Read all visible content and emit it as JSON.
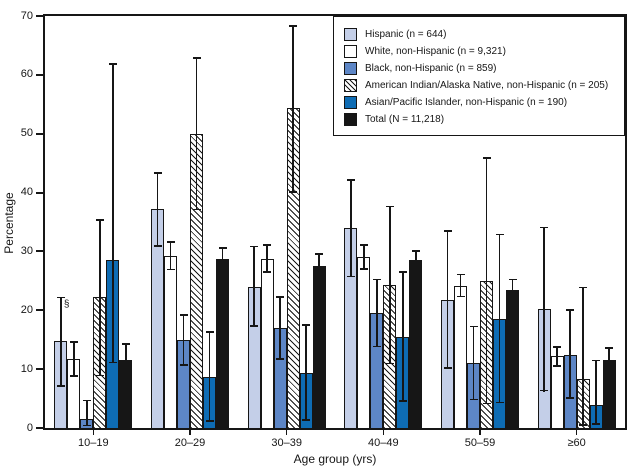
{
  "figure": {
    "background": "#ffffff",
    "axis_color": "#161616"
  },
  "chart_data": {
    "type": "bar",
    "title": "",
    "xlabel": "Age group (yrs)",
    "ylabel": "Percentage",
    "ylim": [
      0,
      70
    ],
    "yticks": [
      0,
      10,
      20,
      30,
      40,
      50,
      60,
      70
    ],
    "grid": false,
    "error_bars": true,
    "legend_position": "top-right-inside",
    "categories": [
      "10–19",
      "20–29",
      "30–39",
      "40–49",
      "50–59",
      "≥60"
    ],
    "series": [
      {
        "name": "Hispanic (n = 644)",
        "color": "#c4cfe8",
        "values": [
          14.7,
          37.2,
          24.0,
          34.0,
          21.8,
          20.2
        ],
        "err_low": [
          7.0,
          30.8,
          17.2,
          25.6,
          10.0,
          6.2
        ],
        "err_high": [
          22.3,
          43.5,
          31.0,
          42.3,
          33.6,
          34.2
        ]
      },
      {
        "name": "White, non-Hispanic (n = 9,321)",
        "color": "#ffffff",
        "values": [
          11.7,
          29.2,
          28.8,
          29.0,
          24.2,
          12.2
        ],
        "err_low": [
          8.7,
          26.8,
          26.4,
          26.9,
          22.2,
          10.4
        ],
        "err_high": [
          14.8,
          31.7,
          31.2,
          31.2,
          26.2,
          13.9
        ]
      },
      {
        "name": "Black, non-Hispanic (n = 859)",
        "color": "#5d86c6",
        "values": [
          1.5,
          15.0,
          17.0,
          19.5,
          11.0,
          12.4
        ],
        "err_low": [
          0.3,
          10.6,
          11.6,
          13.7,
          4.7,
          5.0
        ],
        "err_high": [
          4.8,
          19.3,
          22.4,
          25.4,
          17.4,
          20.2
        ]
      },
      {
        "name": "American Indian/Alaska Native, non-Hispanic (n = 205)",
        "color": "#ffffff",
        "pattern": "diagonal-hatch",
        "values": [
          22.2,
          50.0,
          54.3,
          24.3,
          25.0,
          8.4
        ],
        "err_low": [
          8.8,
          37.0,
          40.0,
          10.8,
          4.0,
          0.4
        ],
        "err_high": [
          35.5,
          63.0,
          68.5,
          37.8,
          46.0,
          24.0
        ]
      },
      {
        "name": "Asian/Pacific Islander, non-Hispanic (n = 190)",
        "color": "#0e6cb4",
        "values": [
          28.6,
          8.7,
          9.4,
          15.5,
          18.5,
          3.9
        ],
        "err_low": [
          11.0,
          1.0,
          1.2,
          4.4,
          4.2,
          0.5
        ],
        "err_high": [
          62.0,
          16.5,
          17.6,
          26.6,
          33.0,
          11.6
        ]
      },
      {
        "name": "Total (N = 11,218)",
        "color": "#161616",
        "values": [
          11.5,
          28.7,
          27.6,
          28.5,
          23.5,
          11.5
        ],
        "err_low": [
          9.0,
          26.8,
          25.5,
          26.7,
          21.4,
          10.3
        ],
        "err_high": [
          14.4,
          30.7,
          29.7,
          30.2,
          25.4,
          13.7
        ]
      }
    ],
    "annotations": [
      {
        "text": "§",
        "category_index": 0,
        "series_index": 0,
        "y_value": 21.0
      }
    ]
  }
}
